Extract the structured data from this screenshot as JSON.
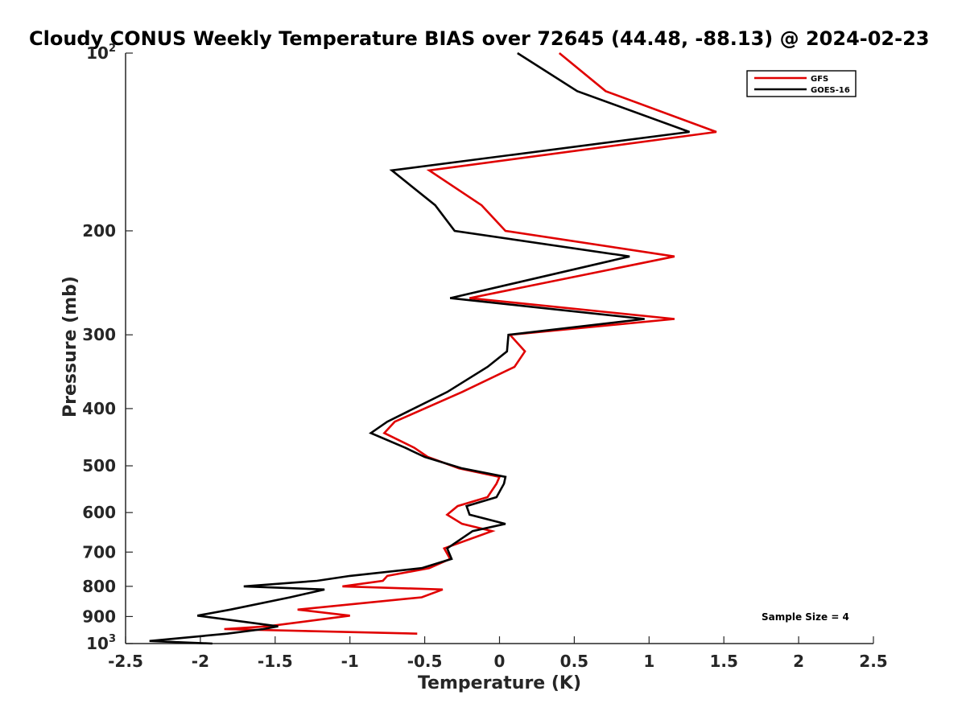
{
  "chart_data": {
    "type": "line",
    "title": "Cloudy CONUS Weekly Temperature BIAS over 72645 (44.48, -88.13) @ 2024-02-23",
    "xlabel": "Temperature (K)",
    "ylabel": "Pressure (mb)",
    "xlim": [
      -2.5,
      2.5
    ],
    "ylim": [
      100,
      1000
    ],
    "y_scale": "log",
    "y_reversed": true,
    "grid": false,
    "legend_position": "top-right",
    "x_ticks": [
      "-2.5",
      "-2",
      "-1.5",
      "-1",
      "-0.5",
      "0",
      "0.5",
      "1",
      "1.5",
      "2",
      "2.5"
    ],
    "x_tick_values": [
      -2.5,
      -2,
      -1.5,
      -1,
      -0.5,
      0,
      0.5,
      1,
      1.5,
      2,
      2.5
    ],
    "y_ticks": [
      {
        "value": 100,
        "base": "10",
        "exp": "2"
      },
      {
        "value": 200,
        "label": "200"
      },
      {
        "value": 300,
        "label": "300"
      },
      {
        "value": 400,
        "label": "400"
      },
      {
        "value": 500,
        "label": "500"
      },
      {
        "value": 600,
        "label": "600"
      },
      {
        "value": 700,
        "label": "700"
      },
      {
        "value": 800,
        "label": "800"
      },
      {
        "value": 900,
        "label": "900"
      },
      {
        "value": 1000,
        "base": "10",
        "exp": "3"
      }
    ],
    "series": [
      {
        "name": "GFS",
        "color": "#e00000",
        "points": [
          [
            0.4,
            100
          ],
          [
            0.71,
            116
          ],
          [
            1.45,
            136
          ],
          [
            -0.47,
            158
          ],
          [
            -0.12,
            181
          ],
          [
            0.04,
            200
          ],
          [
            1.17,
            221
          ],
          [
            -0.2,
            260
          ],
          [
            1.17,
            282
          ],
          [
            0.07,
            300
          ],
          [
            0.17,
            320
          ],
          [
            0.1,
            340
          ],
          [
            -0.25,
            375
          ],
          [
            -0.7,
            421
          ],
          [
            -0.77,
            440
          ],
          [
            -0.57,
            466
          ],
          [
            -0.48,
            483
          ],
          [
            -0.27,
            505
          ],
          [
            0.0,
            522
          ],
          [
            -0.02,
            536
          ],
          [
            -0.08,
            565
          ],
          [
            -0.28,
            585
          ],
          [
            -0.35,
            605
          ],
          [
            -0.25,
            627
          ],
          [
            -0.05,
            645
          ],
          [
            -0.37,
            690
          ],
          [
            -0.33,
            719
          ],
          [
            -0.47,
            745
          ],
          [
            -0.75,
            768
          ],
          [
            -0.78,
            783
          ],
          [
            -1.05,
            800
          ],
          [
            -0.38,
            810
          ],
          [
            -0.52,
            835
          ],
          [
            -1.35,
            876
          ],
          [
            -1.0,
            897
          ],
          [
            -1.55,
            935
          ],
          [
            -1.84,
            945
          ],
          [
            -0.55,
            962
          ]
        ]
      },
      {
        "name": "GOES-16",
        "color": "#000000",
        "points": [
          [
            0.12,
            100
          ],
          [
            0.52,
            116
          ],
          [
            1.27,
            136
          ],
          [
            -0.72,
            158
          ],
          [
            -0.43,
            181
          ],
          [
            -0.3,
            200
          ],
          [
            0.87,
            221
          ],
          [
            -0.33,
            260
          ],
          [
            0.97,
            282
          ],
          [
            0.06,
            300
          ],
          [
            0.05,
            320
          ],
          [
            -0.08,
            340
          ],
          [
            -0.35,
            375
          ],
          [
            -0.75,
            421
          ],
          [
            -0.86,
            440
          ],
          [
            -0.63,
            466
          ],
          [
            -0.5,
            483
          ],
          [
            -0.25,
            505
          ],
          [
            0.04,
            522
          ],
          [
            0.03,
            536
          ],
          [
            -0.02,
            565
          ],
          [
            -0.22,
            585
          ],
          [
            -0.2,
            605
          ],
          [
            0.04,
            627
          ],
          [
            -0.18,
            645
          ],
          [
            -0.35,
            690
          ],
          [
            -0.32,
            719
          ],
          [
            -0.52,
            745
          ],
          [
            -1.0,
            768
          ],
          [
            -1.22,
            783
          ],
          [
            -1.71,
            800
          ],
          [
            -1.17,
            810
          ],
          [
            -1.4,
            835
          ],
          [
            -1.8,
            876
          ],
          [
            -2.02,
            897
          ],
          [
            -1.48,
            935
          ],
          [
            -1.58,
            945
          ],
          [
            -1.82,
            962
          ],
          [
            -2.34,
            990
          ],
          [
            -1.92,
            1000
          ]
        ]
      }
    ],
    "annotations": [
      "Sample Size = 4"
    ]
  }
}
